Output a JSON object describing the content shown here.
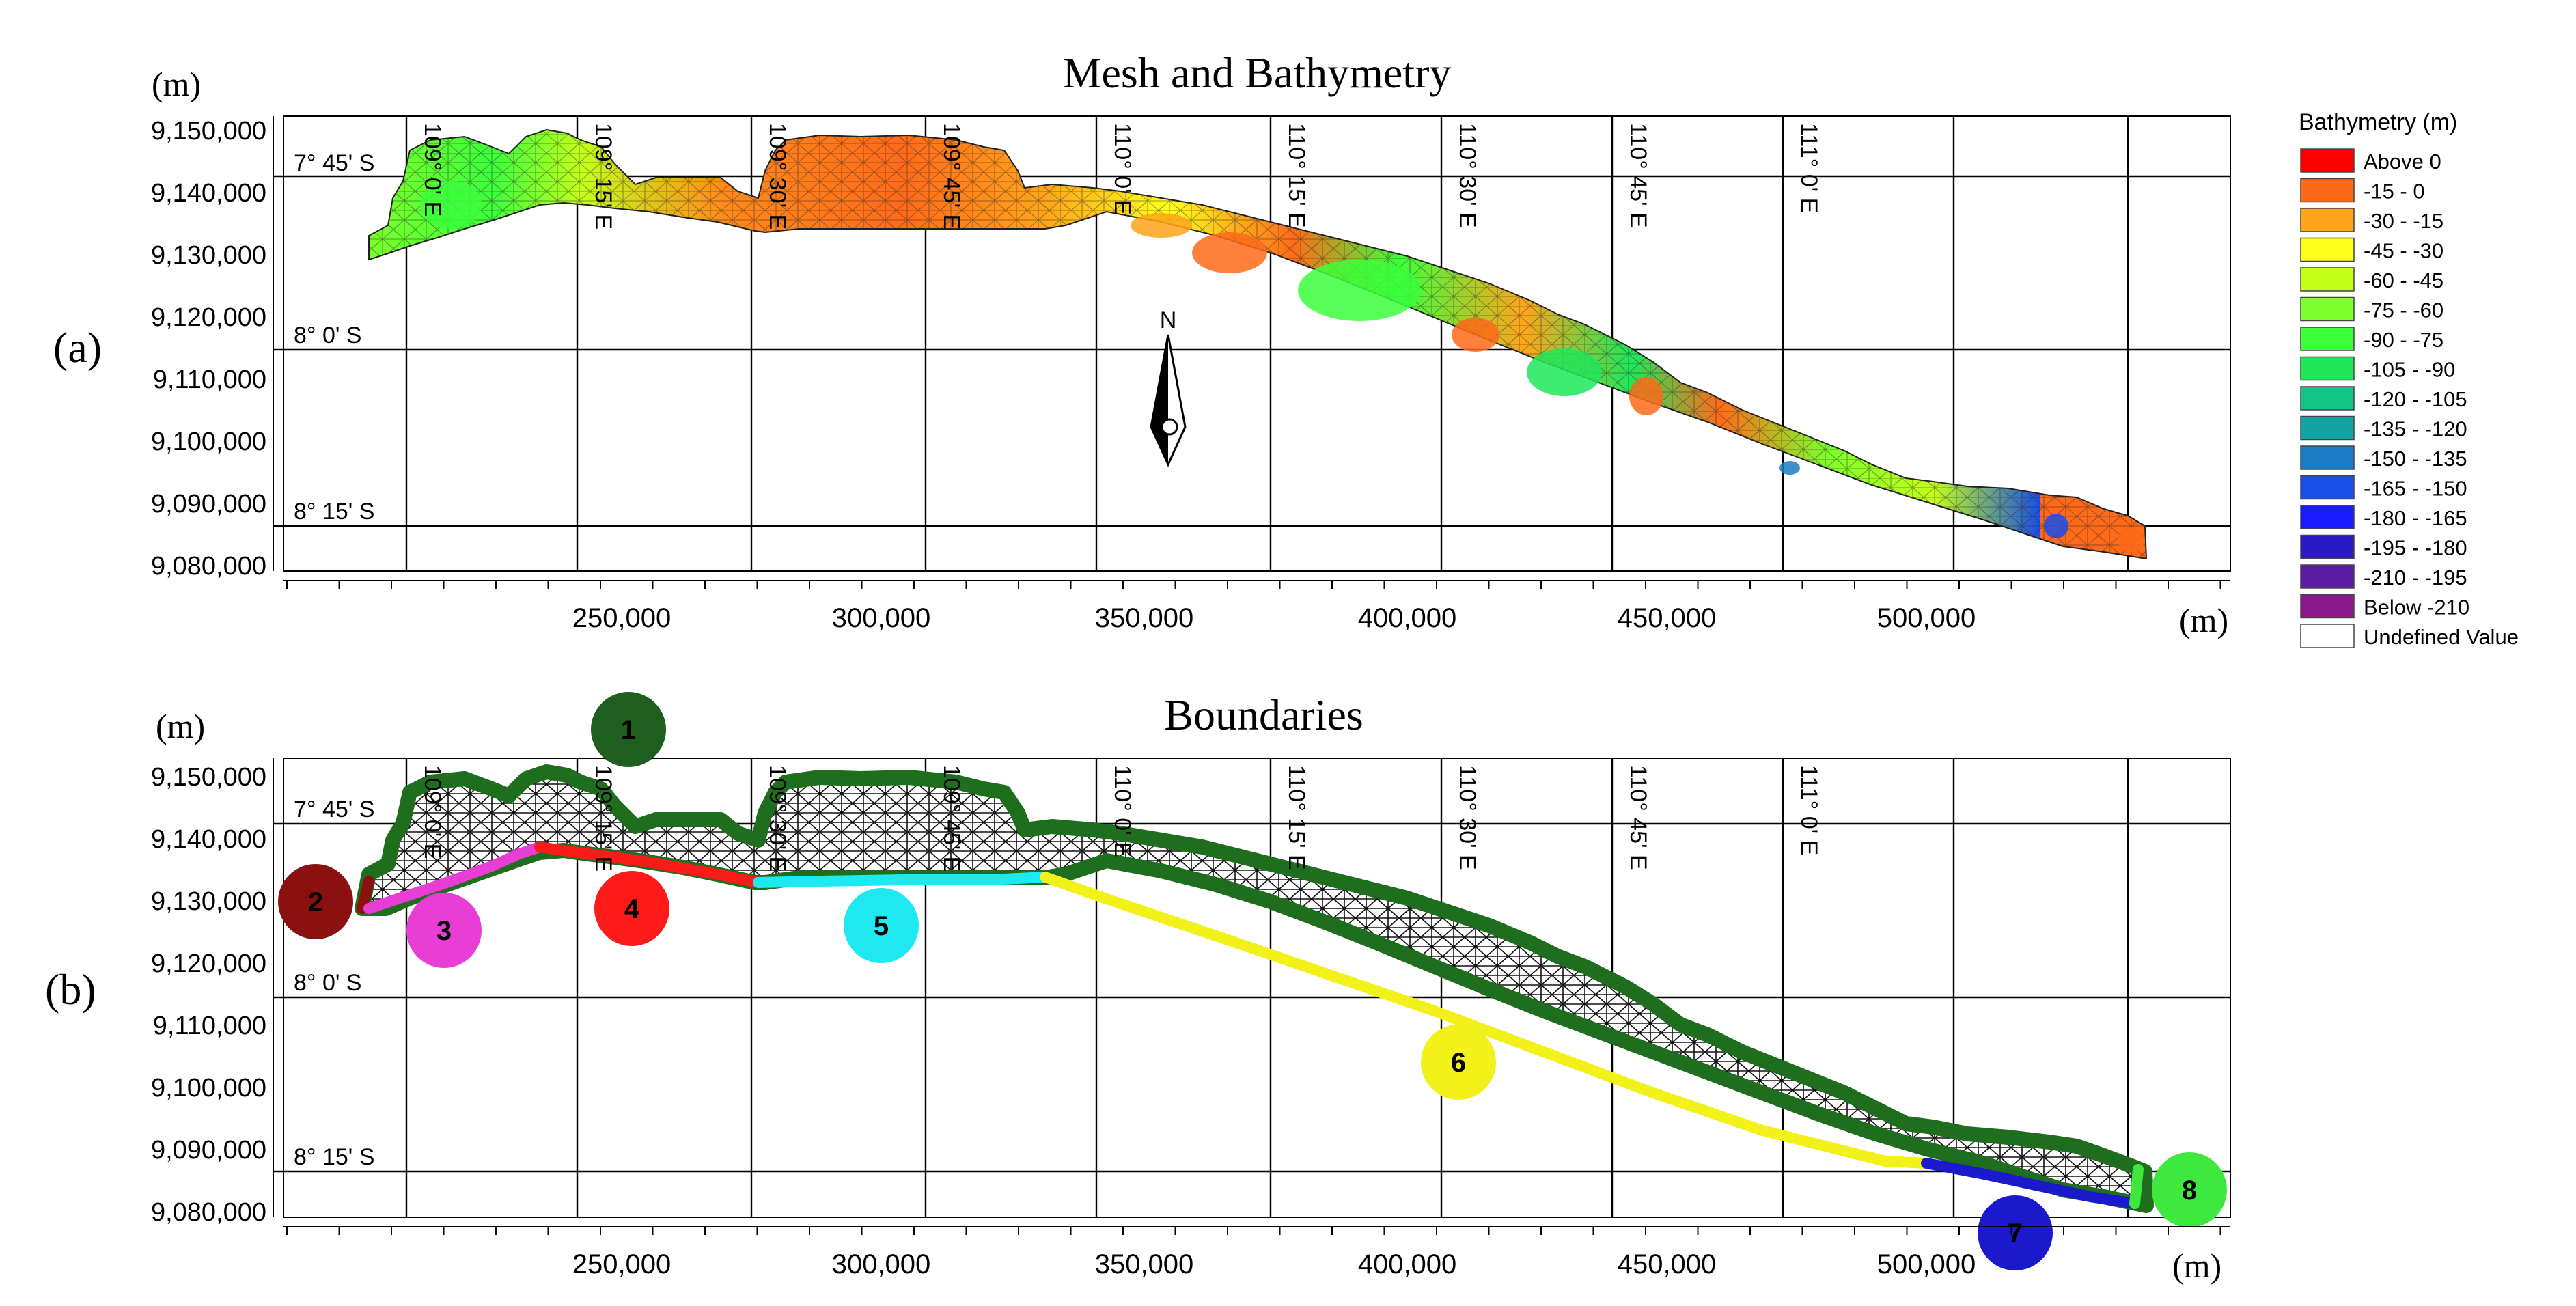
{
  "panel_a": {
    "letter": "(a)",
    "title": "Mesh and Bathymetry",
    "unit_y": "(m)",
    "unit_x": "(m)",
    "lat_labels": [
      "7° 45' S",
      "8° 0' S",
      "8° 15' S"
    ],
    "lon_labels": [
      "109° 0' E",
      "109° 15' E",
      "109° 30' E",
      "109° 45' E",
      "110° 0' E",
      "110° 15' E",
      "110° 30' E",
      "110° 45' E",
      "111° 0' E"
    ],
    "north_label": "N"
  },
  "panel_b": {
    "letter": "(b)",
    "title": "Boundaries",
    "unit_y": "(m)",
    "unit_x": "(m)",
    "lat_labels": [
      "7° 45' S",
      "8° 0' S",
      "8° 15' S"
    ],
    "lon_labels": [
      "109° 0' E",
      "109° 15' E",
      "109° 30' E",
      "109° 45' E",
      "110° 0' E",
      "110° 15' E",
      "110° 30' E",
      "110° 45' E",
      "111° 0' E"
    ],
    "boundaries": [
      {
        "id": "1",
        "color": "#1e5e1e"
      },
      {
        "id": "2",
        "color": "#8b1010"
      },
      {
        "id": "3",
        "color": "#e83ed6"
      },
      {
        "id": "4",
        "color": "#ff1a1a"
      },
      {
        "id": "5",
        "color": "#1ee8f0"
      },
      {
        "id": "6",
        "color": "#f2f21a"
      },
      {
        "id": "7",
        "color": "#1a1acc"
      },
      {
        "id": "8",
        "color": "#3ee83e"
      }
    ]
  },
  "axes": {
    "y_ticks": [
      "9,150,000",
      "9,140,000",
      "9,130,000",
      "9,120,000",
      "9,110,000",
      "9,100,000",
      "9,090,000",
      "9,080,000"
    ],
    "x_ticks": [
      "250,000",
      "300,000",
      "350,000",
      "400,000",
      "450,000",
      "500,000"
    ]
  },
  "legend": {
    "title": "Bathymetry (m)",
    "items": [
      {
        "label": "Above 0",
        "color": "#ff0000"
      },
      {
        "label": "-15 - 0",
        "color": "#ff6a1a"
      },
      {
        "label": "-30 - -15",
        "color": "#ffa51a"
      },
      {
        "label": "-45 - -30",
        "color": "#ffff1a"
      },
      {
        "label": "-60 - -45",
        "color": "#c4ff1a"
      },
      {
        "label": "-75 - -60",
        "color": "#7cff2a"
      },
      {
        "label": "-90 - -75",
        "color": "#3cff3c"
      },
      {
        "label": "-105 - -90",
        "color": "#1ee85a"
      },
      {
        "label": "-120 - -105",
        "color": "#12c486"
      },
      {
        "label": "-135 - -120",
        "color": "#12a4a4"
      },
      {
        "label": "-150 - -135",
        "color": "#1a7cc4"
      },
      {
        "label": "-165 - -150",
        "color": "#1a4ee8"
      },
      {
        "label": "-180 - -165",
        "color": "#1a1aff"
      },
      {
        "label": "-195 - -180",
        "color": "#2a1ac4"
      },
      {
        "label": "-210 - -195",
        "color": "#5a1aa4"
      },
      {
        "label": "Below -210",
        "color": "#8a1a8a"
      },
      {
        "label": "Undefined Value",
        "color": "#ffffff"
      }
    ]
  }
}
